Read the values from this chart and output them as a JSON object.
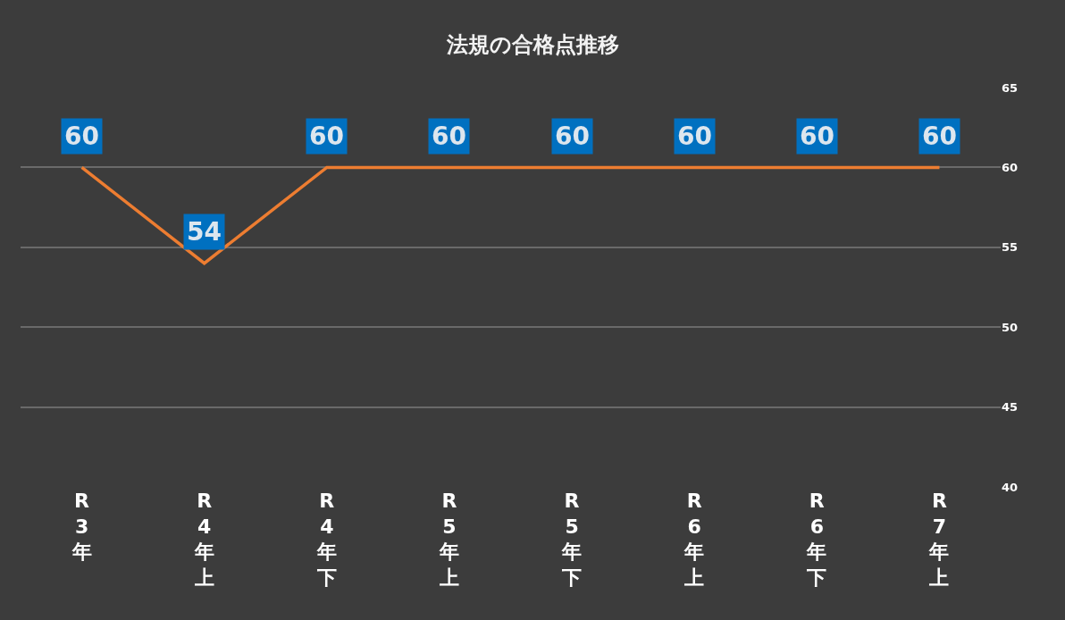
{
  "chart_data": {
    "type": "line",
    "title": "法規の合格点推移",
    "categories": [
      "R3年",
      "R4年上",
      "R4年下",
      "R5年上",
      "R5年下",
      "R6年上",
      "R6年下",
      "R7年上"
    ],
    "series": [
      {
        "color": "#ed7d31",
        "values": [
          60,
          54,
          60,
          60,
          60,
          60,
          60,
          60
        ]
      }
    ],
    "ylim": [
      40,
      65
    ],
    "yticks": [
      40,
      45,
      50,
      55,
      60,
      65
    ],
    "grid": "y",
    "data_labels": true,
    "marker": "none",
    "line_style": "solid"
  }
}
